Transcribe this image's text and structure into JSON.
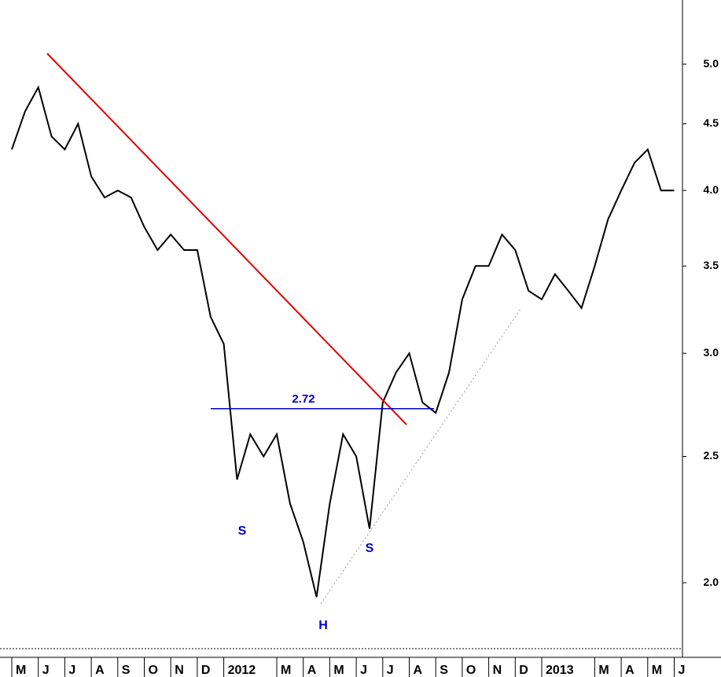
{
  "chart_data": {
    "type": "line",
    "log_scale": true,
    "categories": [
      "M",
      null,
      "J",
      null,
      "J",
      null,
      "A",
      null,
      "S",
      null,
      "O",
      null,
      "N",
      null,
      "D",
      null,
      "2012",
      null,
      null,
      null,
      "M",
      null,
      "A",
      null,
      "M",
      null,
      "J",
      null,
      "J",
      null,
      "A",
      null,
      "S",
      null,
      "O",
      null,
      "N",
      null,
      "D",
      null,
      "2013",
      null,
      null,
      null,
      "M",
      null,
      "A",
      null,
      "M",
      null,
      "J"
    ],
    "series": [
      {
        "color": "#000000",
        "values": [
          4.3,
          4.6,
          4.8,
          4.4,
          4.3,
          4.5,
          4.1,
          3.95,
          4.0,
          3.95,
          3.75,
          3.6,
          3.7,
          3.6,
          3.6,
          3.2,
          3.05,
          2.4,
          2.6,
          2.5,
          2.6,
          2.3,
          2.15,
          1.95,
          2.3,
          2.6,
          2.5,
          2.2,
          2.75,
          2.9,
          3.0,
          2.75,
          2.7,
          2.9,
          3.3,
          3.5,
          3.5,
          3.7,
          3.6,
          3.35,
          3.3,
          3.45,
          3.35,
          3.25,
          3.5,
          3.8,
          4.0,
          4.2,
          4.3,
          4.0,
          4.0
        ]
      }
    ],
    "ylim": [
      1.78,
      5.6
    ],
    "yticks": [
      {
        "value": 2,
        "label": "2.0"
      },
      2.5,
      {
        "value": 3,
        "label": "3.0"
      },
      3.5,
      {
        "value": 4,
        "label": "4.0"
      },
      4.5,
      {
        "value": 5,
        "label": "5.0"
      }
    ],
    "resistance": 2.72,
    "annotations": [
      "S",
      "H",
      "S"
    ]
  }
}
